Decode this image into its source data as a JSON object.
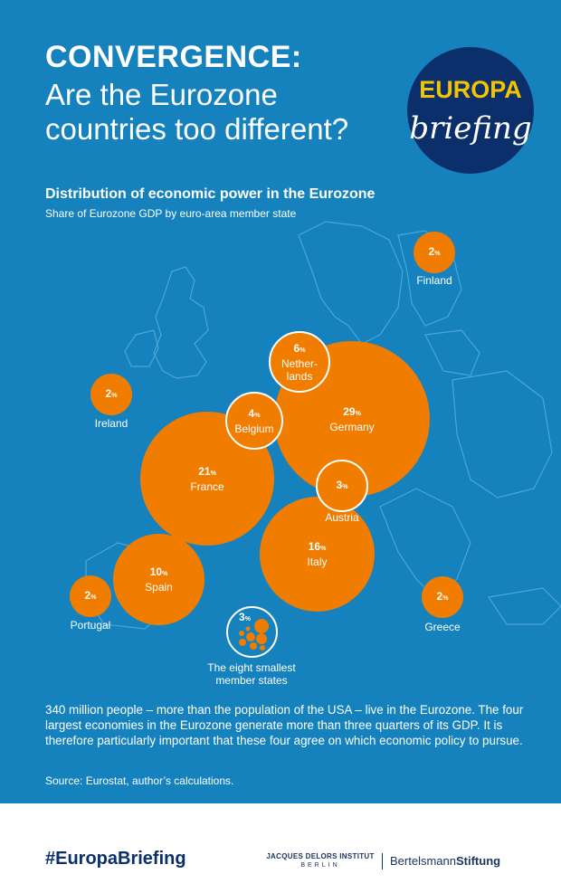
{
  "header": {
    "title_bold": "CONVERGENCE:",
    "title_rest": "Are the Eurozone countries too different?"
  },
  "logo": {
    "word": "EUROPA",
    "script": "briefing"
  },
  "chart": {
    "title": "Distribution of economic power in the Eurozone",
    "subtitle": "Share of Eurozone GDP by euro-area member state",
    "percent_sign": "%"
  },
  "chart_data": {
    "type": "bubble",
    "unit": "%",
    "items": [
      {
        "name": "Germany",
        "value": 29
      },
      {
        "name": "France",
        "value": 21
      },
      {
        "name": "Italy",
        "value": 16
      },
      {
        "name": "Spain",
        "value": 10
      },
      {
        "name": "Netherlands",
        "label": "Nether-lands",
        "value": 6
      },
      {
        "name": "Belgium",
        "value": 4
      },
      {
        "name": "Austria",
        "value": 3
      },
      {
        "name": "The eight smallest member states",
        "value": 3
      },
      {
        "name": "Finland",
        "value": 2
      },
      {
        "name": "Ireland",
        "value": 2
      },
      {
        "name": "Portugal",
        "value": 2
      },
      {
        "name": "Greece",
        "value": 2
      }
    ]
  },
  "labels": {
    "germany": "Germany",
    "france": "France",
    "italy": "Italy",
    "spain": "Spain",
    "netherlands_1": "Nether-",
    "netherlands_2": "lands",
    "belgium": "Belgium",
    "austria": "Austria",
    "finland": "Finland",
    "ireland": "Ireland",
    "portugal": "Portugal",
    "greece": "Greece",
    "smallest_1": "The eight smallest",
    "smallest_2": "member states"
  },
  "values": {
    "germany": "29",
    "france": "21",
    "italy": "16",
    "spain": "10",
    "netherlands": "6",
    "belgium": "4",
    "austria": "3",
    "smallest": "3",
    "finland": "2",
    "ireland": "2",
    "portugal": "2",
    "greece": "2"
  },
  "body_text": "340 million people – more than the population of the USA – live in the Eurozone. The four largest economies in the Eurozone generate more than three quarters of its GDP. It is therefore particularly important that these four agree on which economic policy to pursue.",
  "source": "Source: Eurostat, author’s calculations.",
  "footer": {
    "hashtag": "#EuropaBriefing",
    "delors_line1": "JACQUES DELORS INSTITUT",
    "delors_line2": "BERLIN",
    "stiftung_a": "Bertelsmann",
    "stiftung_b": "Stiftung"
  },
  "colors": {
    "background": "#1582be",
    "bubble": "#f07d00",
    "logo_navy": "#0b2f6b",
    "logo_yellow": "#f5c400"
  }
}
